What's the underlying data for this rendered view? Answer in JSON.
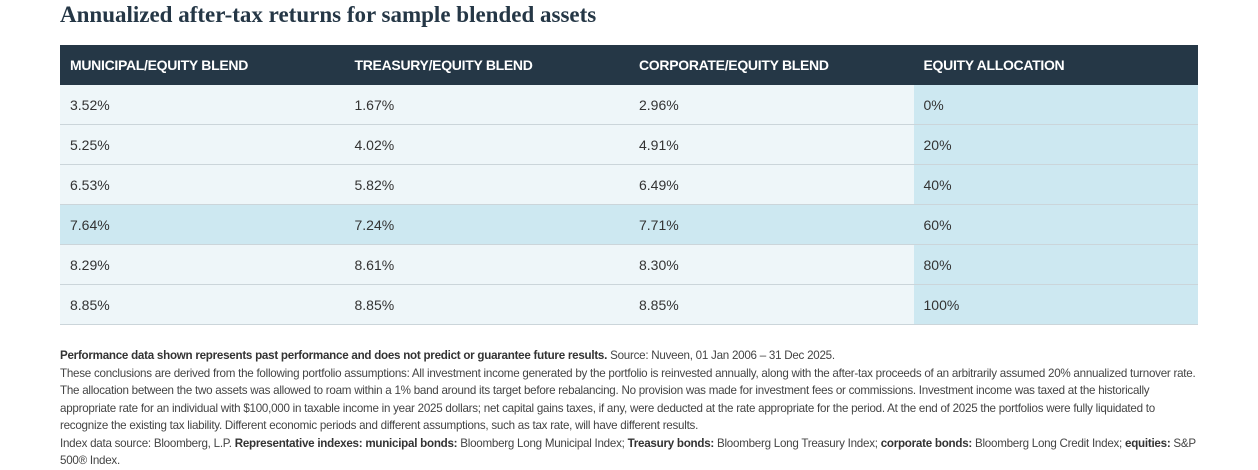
{
  "title": "Annualized after-tax returns for sample blended assets",
  "table": {
    "header": [
      "MUNICIPAL/EQUITY BLEND",
      "TREASURY/EQUITY BLEND",
      "CORPORATE/EQUITY BLEND",
      "EQUITY ALLOCATION"
    ],
    "rows": [
      [
        "3.52%",
        "1.67%",
        "2.96%",
        "0%"
      ],
      [
        "5.25%",
        "4.02%",
        "4.91%",
        "20%"
      ],
      [
        "6.53%",
        "5.82%",
        "6.49%",
        "40%"
      ],
      [
        "7.64%",
        "7.24%",
        "7.71%",
        "60%"
      ],
      [
        "8.29%",
        "8.61%",
        "8.30%",
        "80%"
      ],
      [
        "8.85%",
        "8.85%",
        "8.85%",
        "100%"
      ]
    ],
    "highlight_row": 3
  },
  "notes": [
    [
      {
        "text": "Performance data shown represents past performance and does not predict or guarantee future results.",
        "bold": true
      },
      {
        "text": " Source: Nuveen, 01 Jan 2006 – 31 Dec 2025.",
        "bold": false
      }
    ],
    [
      {
        "text": "These conclusions are derived from the following portfolio assumptions: All investment income generated by the portfolio is reinvested annually, along with the after-tax proceeds of an arbitrarily assumed 20% annualized turnover rate. The allocation between the two assets was allowed to roam within a 1% band around its target before rebalancing. No provision was made for investment fees or commissions. Investment income was taxed at the historically appropriate rate for an individual with $100,000 in taxable income in year 2025 dollars; net capital gains taxes, if any, were deducted at the rate appropriate for the period. At the end of 2025 the portfolios were fully liquidated to recognize the existing tax liability. Different economic periods and different assumptions, such as tax rate, will have different results.",
        "bold": false
      }
    ],
    [
      {
        "text": "Index data source: Bloomberg, L.P. ",
        "bold": false
      },
      {
        "text": "Representative indexes: municipal bonds:",
        "bold": true
      },
      {
        "text": " Bloomberg Long Municipal Index; ",
        "bold": false
      },
      {
        "text": "Treasury bonds:",
        "bold": true
      },
      {
        "text": " Bloomberg Long Treasury Index; ",
        "bold": false
      },
      {
        "text": "corporate bonds:",
        "bold": true
      },
      {
        "text": " Bloomberg Long Credit Index; ",
        "bold": false
      },
      {
        "text": "equities:",
        "bold": true
      },
      {
        "text": " S&P 500® Index.",
        "bold": false
      }
    ]
  ]
}
